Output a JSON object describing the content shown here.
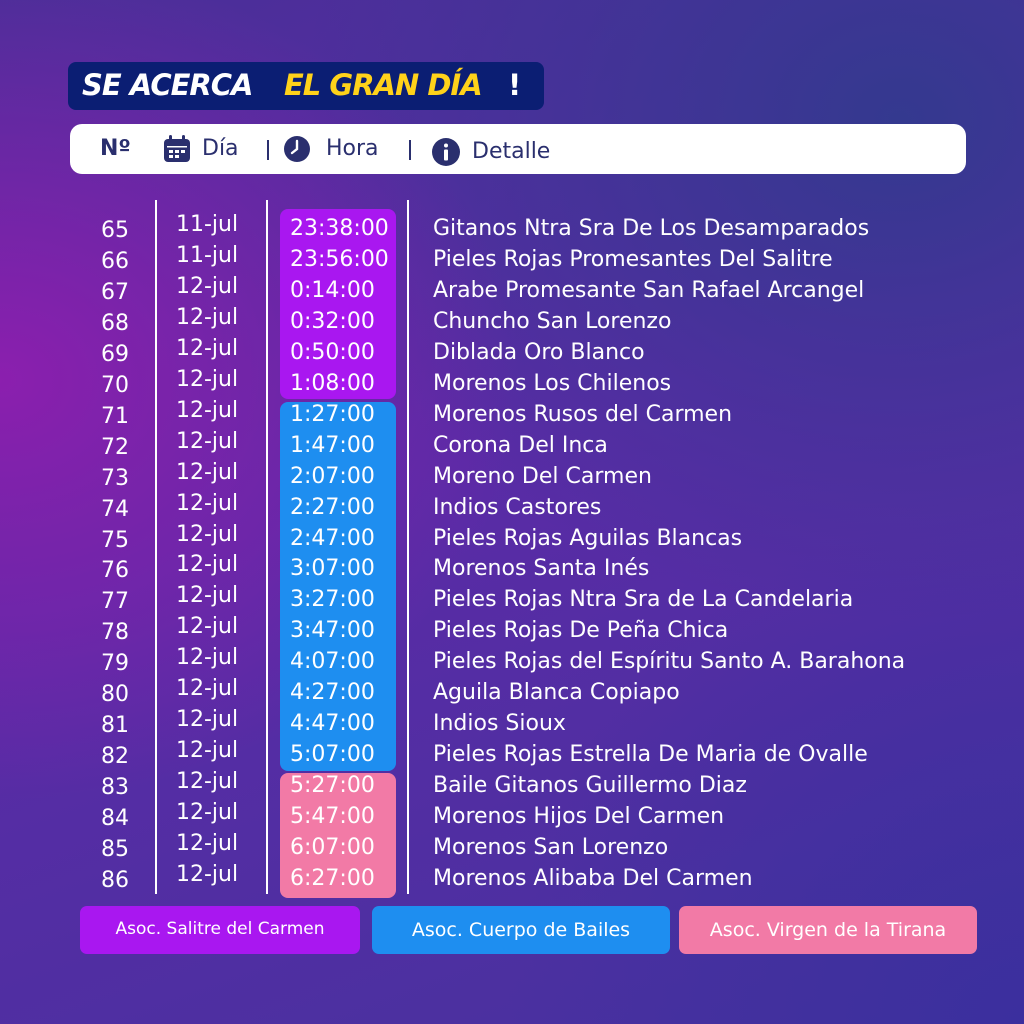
{
  "title": {
    "part1": "SE ACERCA",
    "part2": "EL GRAN DÍA",
    "part3": "!"
  },
  "header": {
    "no_label": "Nº",
    "day_label": "Día",
    "time_label": "Hora",
    "detail_label": "Detalle",
    "icons": [
      "calendar-icon",
      "clock-icon",
      "info-icon"
    ]
  },
  "colors": {
    "purple": "#a917f0",
    "blue": "#1e8ef0",
    "pink": "#f27aa6",
    "title_bg": "#0b1e73",
    "title_accent": "#ffd21a"
  },
  "rows": [
    {
      "no": "65",
      "day": "11-jul",
      "time": "23:38:00",
      "detail": "Gitanos Ntra Sra De Los Desamparados"
    },
    {
      "no": "66",
      "day": "11-jul",
      "time": "23:56:00",
      "detail": "Pieles Rojas Promesantes Del Salitre"
    },
    {
      "no": "67",
      "day": "12-jul",
      "time": "0:14:00",
      "detail": "Arabe Promesante San Rafael Arcangel"
    },
    {
      "no": "68",
      "day": "12-jul",
      "time": "0:32:00",
      "detail": "Chuncho San Lorenzo"
    },
    {
      "no": "69",
      "day": "12-jul",
      "time": "0:50:00",
      "detail": "Diblada Oro Blanco"
    },
    {
      "no": "70",
      "day": "12-jul",
      "time": "1:08:00",
      "detail": "Morenos Los Chilenos"
    },
    {
      "no": "71",
      "day": "12-jul",
      "time": "1:27:00",
      "detail": "Morenos Rusos del Carmen"
    },
    {
      "no": "72",
      "day": "12-jul",
      "time": "1:47:00",
      "detail": "Corona Del Inca"
    },
    {
      "no": "73",
      "day": "12-jul",
      "time": "2:07:00",
      "detail": "Moreno Del Carmen"
    },
    {
      "no": "74",
      "day": "12-jul",
      "time": "2:27:00",
      "detail": "Indios Castores"
    },
    {
      "no": "75",
      "day": "12-jul",
      "time": "2:47:00",
      "detail": "Pieles Rojas Aguilas Blancas"
    },
    {
      "no": "76",
      "day": "12-jul",
      "time": "3:07:00",
      "detail": "Morenos Santa Inés"
    },
    {
      "no": "77",
      "day": "12-jul",
      "time": "3:27:00",
      "detail": "Pieles Rojas Ntra Sra de La Candelaria"
    },
    {
      "no": "78",
      "day": "12-jul",
      "time": "3:47:00",
      "detail": "Pieles Rojas De Peña Chica"
    },
    {
      "no": "79",
      "day": "12-jul",
      "time": "4:07:00",
      "detail": "Pieles Rojas del Espíritu Santo A. Barahona"
    },
    {
      "no": "80",
      "day": "12-jul",
      "time": "4:27:00",
      "detail": "Aguila Blanca Copiapo"
    },
    {
      "no": "81",
      "day": "12-jul",
      "time": "4:47:00",
      "detail": "Indios Sioux"
    },
    {
      "no": "82",
      "day": "12-jul",
      "time": "5:07:00",
      "detail": "Pieles Rojas Estrella De Maria de Ovalle"
    },
    {
      "no": "83",
      "day": "12-jul",
      "time": "5:27:00",
      "detail": "Baile Gitanos Guillermo Diaz"
    },
    {
      "no": "84",
      "day": "12-jul",
      "time": "5:47:00",
      "detail": "Morenos Hijos Del Carmen"
    },
    {
      "no": "85",
      "day": "12-jul",
      "time": "6:07:00",
      "detail": "Morenos San Lorenzo"
    },
    {
      "no": "86",
      "day": "12-jul",
      "time": "6:27:00",
      "detail": "Morenos Alibaba Del Carmen"
    }
  ],
  "legend": [
    {
      "label": "Asoc. Salitre del Carmen",
      "color": "purple"
    },
    {
      "label": "Asoc. Cuerpo de Bailes",
      "color": "blue"
    },
    {
      "label": "Asoc. Virgen de la Tirana",
      "color": "pink"
    }
  ]
}
